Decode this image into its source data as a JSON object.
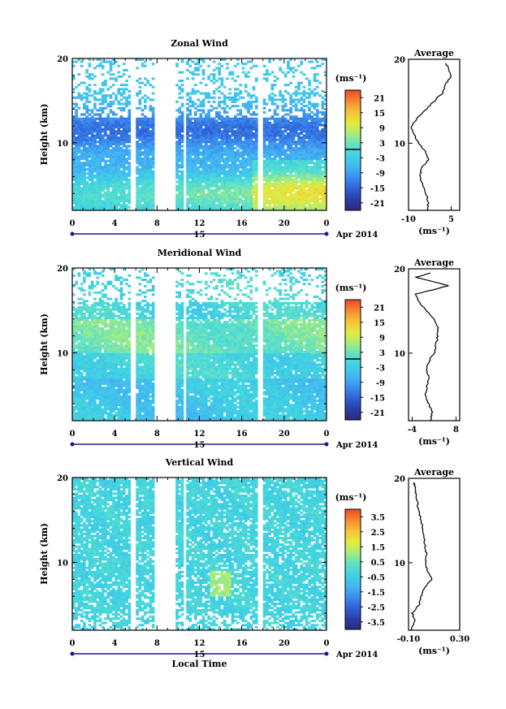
{
  "x_ticks": [
    "0",
    "4",
    "8",
    "12",
    "16",
    "20",
    "0"
  ],
  "day_label": "15",
  "month_label": "Apr 2014",
  "xlabel": "Local Time",
  "ylabel": "Height (km)",
  "avg_title": "Average",
  "unit_label": "(ms⁻¹)",
  "y_ticks": [
    "20",
    "10"
  ],
  "colormap": [
    "#2b2b7a",
    "#2a3fa8",
    "#2f62d6",
    "#3b8ef0",
    "#43b8f2",
    "#3fd2e2",
    "#5fe0c8",
    "#a8ec7a",
    "#e4ea3c",
    "#f6c33a",
    "#f58a2e",
    "#ea4a2a"
  ],
  "chart_data": [
    {
      "type": "heatmap",
      "title": "Zonal Wind",
      "xlabel": "Local Time",
      "ylabel": "Height (km)",
      "xlim": [
        0,
        24
      ],
      "ylim": [
        2,
        20
      ],
      "colorbar_ticks": [
        "21",
        "15",
        "9",
        "3",
        "-3",
        "-9",
        "-15",
        "-21"
      ],
      "colorbar_range": [
        -24,
        24
      ],
      "data_gaps_hours": [
        [
          5.6,
          6.0
        ],
        [
          7.8,
          9.7
        ],
        [
          10.4,
          10.8
        ],
        [
          17.6,
          17.9
        ]
      ],
      "average_profile": {
        "title": "Average",
        "xlabel": "(ms⁻¹)",
        "xlim": [
          -10,
          8
        ],
        "x_ticks": [
          "-10",
          "5"
        ],
        "y_ticks": [
          "20",
          "10"
        ],
        "height_km": [
          2,
          3,
          4,
          5,
          6,
          7,
          8,
          9,
          10,
          11,
          12,
          13,
          14,
          15,
          16,
          17,
          18,
          19,
          19.5
        ],
        "value_ms": [
          -3.5,
          -3,
          -4,
          -5,
          -6,
          -5.5,
          -3,
          -4,
          -6.5,
          -8,
          -9,
          -7,
          -4,
          -1,
          2,
          3,
          5,
          4,
          3
        ]
      }
    },
    {
      "type": "heatmap",
      "title": "Meridional Wind",
      "xlabel": "Local Time",
      "ylabel": "Height (km)",
      "xlim": [
        0,
        24
      ],
      "ylim": [
        2,
        20
      ],
      "colorbar_ticks": [
        "21",
        "15",
        "9",
        "3",
        "-3",
        "-9",
        "-15",
        "-21"
      ],
      "colorbar_range": [
        -24,
        24
      ],
      "data_gaps_hours": [
        [
          5.6,
          6.0
        ],
        [
          7.8,
          9.7
        ],
        [
          10.4,
          10.8
        ],
        [
          17.6,
          17.9
        ]
      ],
      "average_profile": {
        "title": "Average",
        "xlabel": "(ms⁻¹)",
        "xlim": [
          -5,
          9
        ],
        "x_ticks": [
          "-4",
          "8"
        ],
        "y_ticks": [
          "20",
          "10"
        ],
        "height_km": [
          2,
          3,
          4,
          5,
          6,
          7,
          8,
          9,
          10,
          11,
          12,
          13,
          14,
          15,
          16,
          17,
          18,
          19,
          19.5
        ],
        "value_ms": [
          1,
          1.5,
          0.5,
          -0.5,
          0,
          0.5,
          0,
          0.5,
          2,
          2.5,
          3,
          3,
          2,
          0,
          -2,
          -3,
          6,
          -3,
          1
        ]
      }
    },
    {
      "type": "heatmap",
      "title": "Vertical Wind",
      "xlabel": "Local Time",
      "ylabel": "Height (km)",
      "xlim": [
        0,
        24
      ],
      "ylim": [
        2,
        20
      ],
      "colorbar_ticks": [
        "3.5",
        "2.5",
        "1.5",
        "0.5",
        "-0.5",
        "-1.5",
        "-2.5",
        "-3.5"
      ],
      "colorbar_range": [
        -4,
        4
      ],
      "data_gaps_hours": [
        [
          5.6,
          6.0
        ],
        [
          7.8,
          9.7
        ],
        [
          10.4,
          10.8
        ],
        [
          17.6,
          17.9
        ]
      ],
      "average_profile": {
        "title": "Average",
        "xlabel": "(ms⁻¹)",
        "xlim": [
          -0.1,
          0.3
        ],
        "x_ticks": [
          "-0.10",
          "0.30"
        ],
        "y_ticks": [
          "20",
          "10"
        ],
        "height_km": [
          2,
          3,
          4,
          5,
          6,
          7,
          8,
          9,
          10,
          11,
          12,
          13,
          14,
          15,
          16,
          17,
          18,
          19,
          19.5
        ],
        "value_ms": [
          -0.08,
          -0.05,
          -0.07,
          -0.02,
          0.0,
          0.02,
          0.08,
          0.05,
          0.03,
          0.04,
          0.03,
          0.02,
          0.01,
          0.0,
          -0.02,
          -0.03,
          -0.04,
          -0.05,
          -0.06
        ]
      }
    }
  ]
}
